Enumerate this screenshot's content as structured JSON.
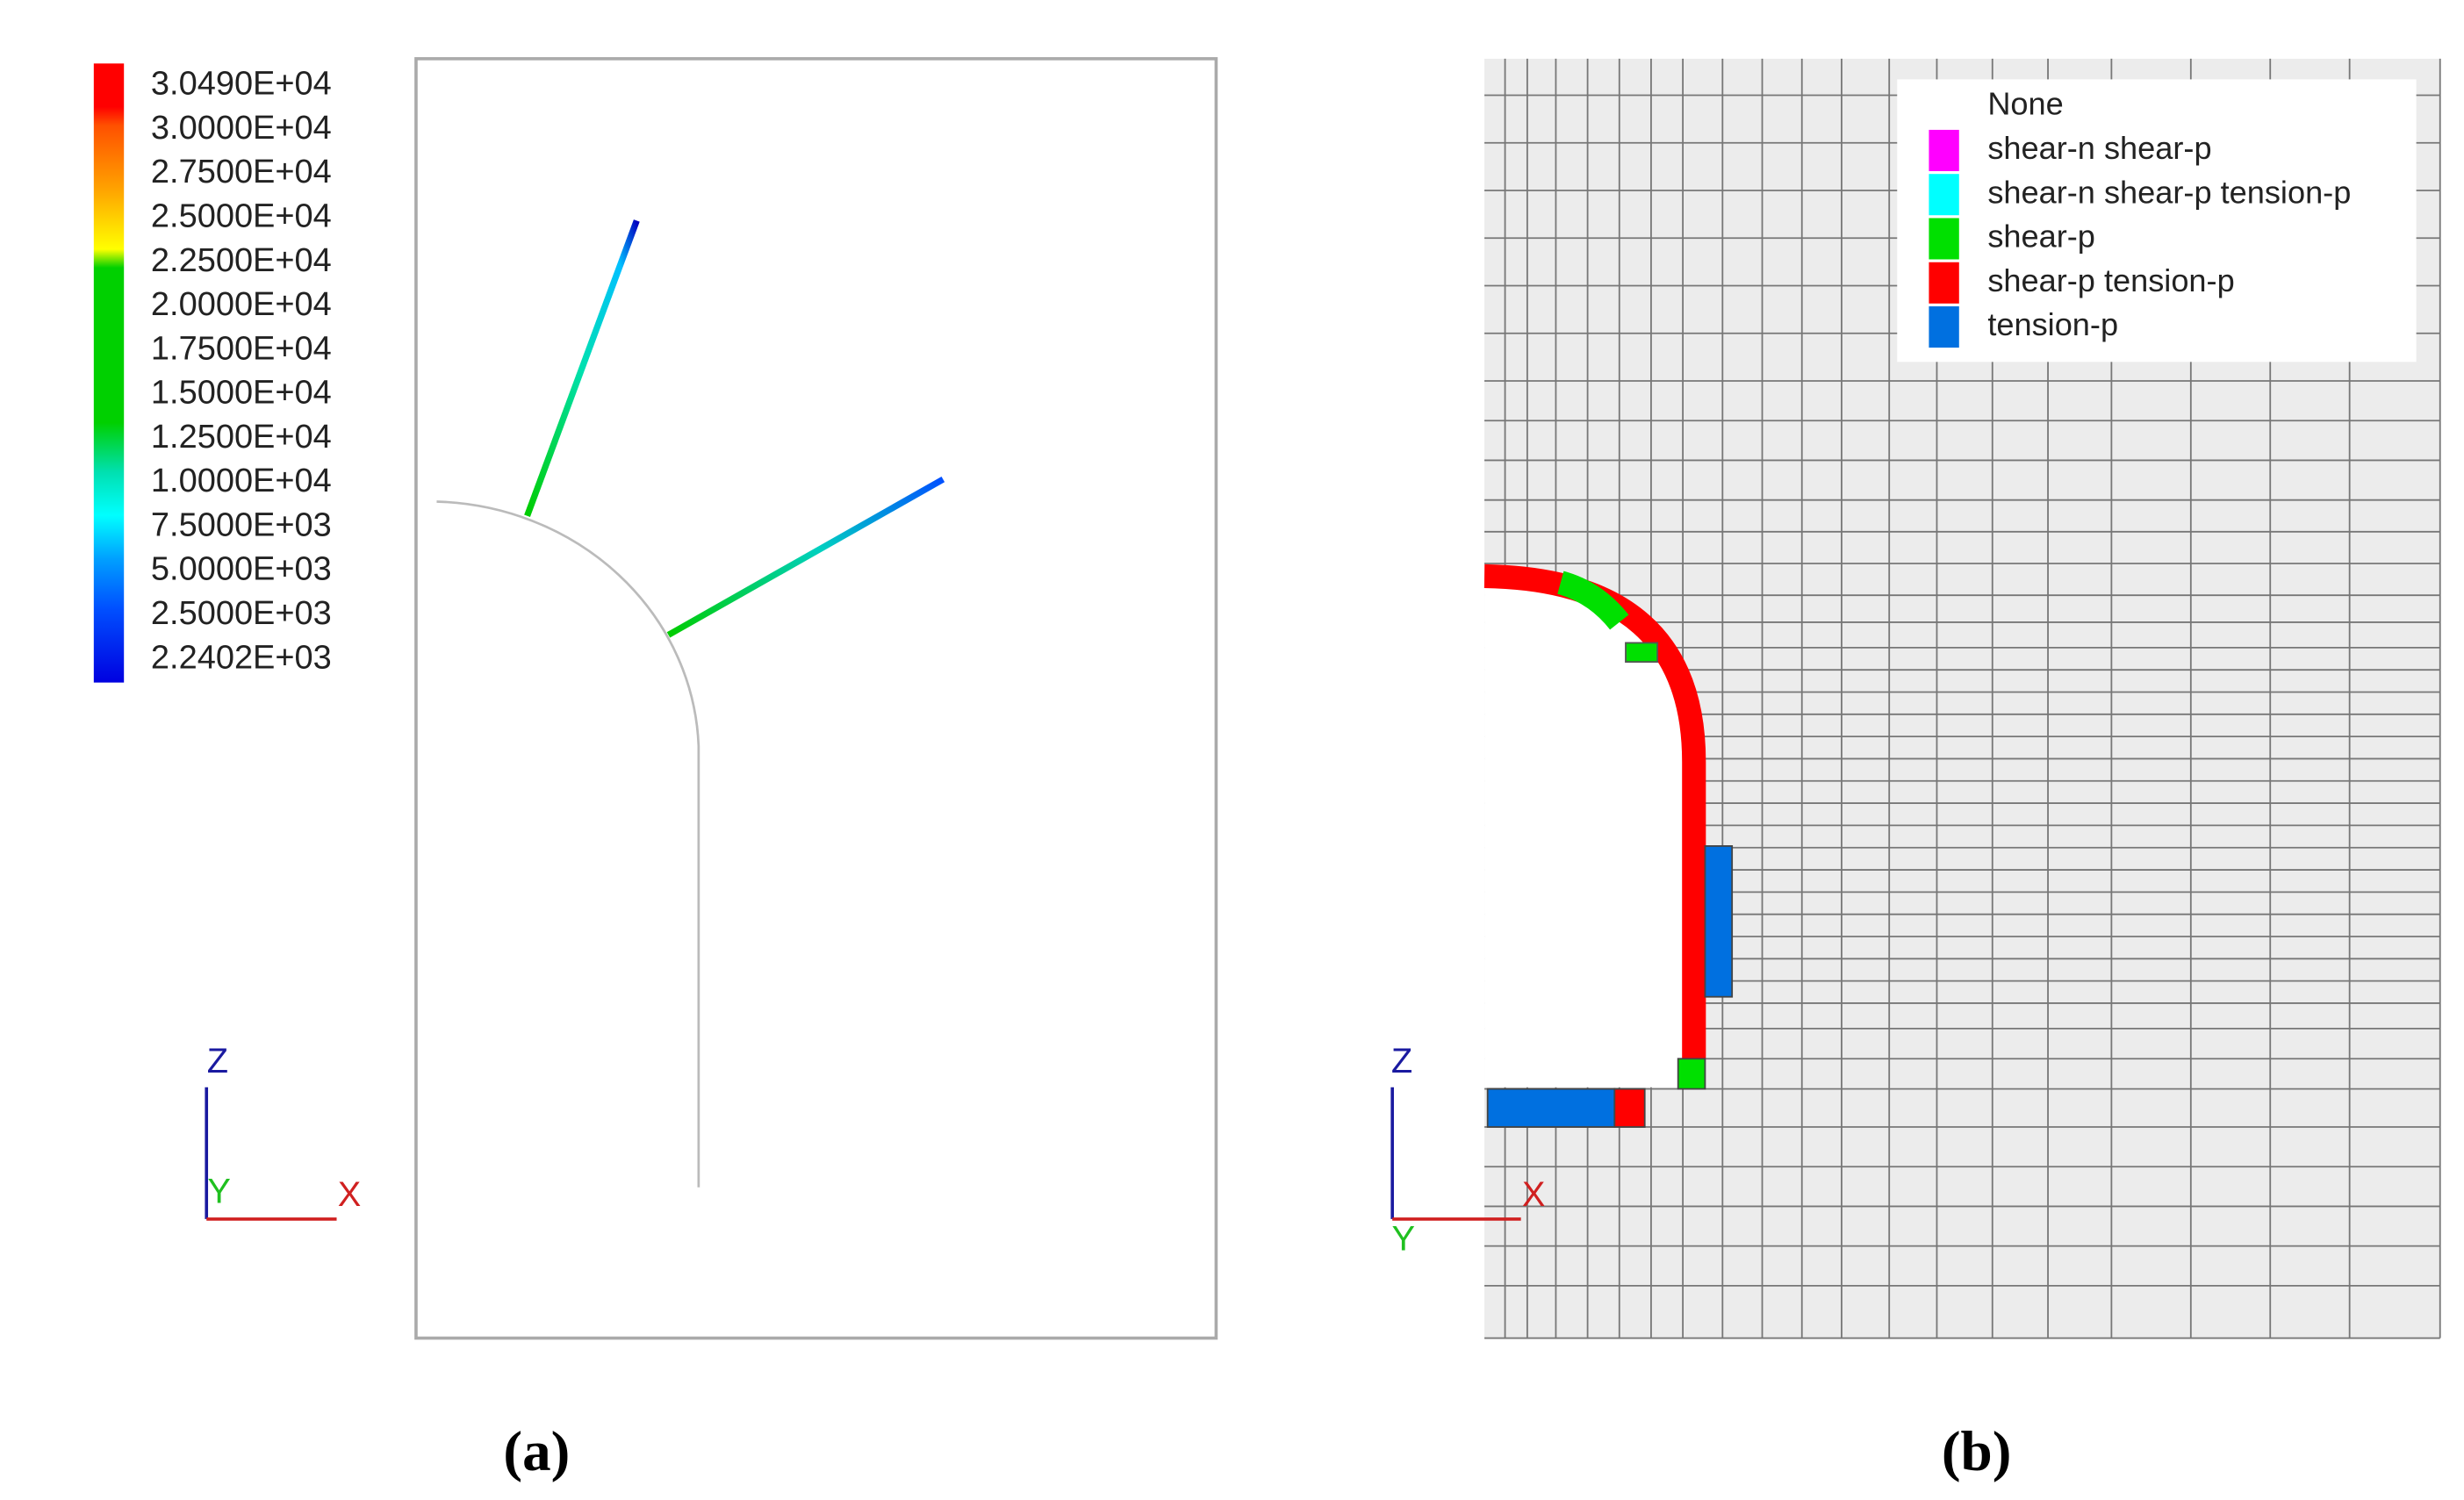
{
  "panel_a": {
    "colorbar": {
      "labels": [
        "3.0490E+04",
        "3.0000E+04",
        "2.7500E+04",
        "2.5000E+04",
        "2.2500E+04",
        "2.0000E+04",
        "1.7500E+04",
        "1.5000E+04",
        "1.2500E+04",
        "1.0000E+04",
        "7.5000E+03",
        "5.0000E+03",
        "2.5000E+03",
        "2.2402E+03"
      ]
    },
    "axes": {
      "z": "Z",
      "y": "Y",
      "x": "X"
    },
    "caption": "(a)"
  },
  "panel_b": {
    "legend": [
      {
        "label": "None",
        "color": "#ffffff"
      },
      {
        "label": "shear-n shear-p",
        "color": "#ff00ff"
      },
      {
        "label": "shear-n shear-p tension-p",
        "color": "#00ffff"
      },
      {
        "label": "shear-p",
        "color": "#00e000"
      },
      {
        "label": "shear-p tension-p",
        "color": "#ff0000"
      },
      {
        "label": "tension-p",
        "color": "#0070e0"
      }
    ],
    "axes": {
      "z": "Z",
      "y": "Y",
      "x": "X"
    },
    "caption": "(b)"
  }
}
